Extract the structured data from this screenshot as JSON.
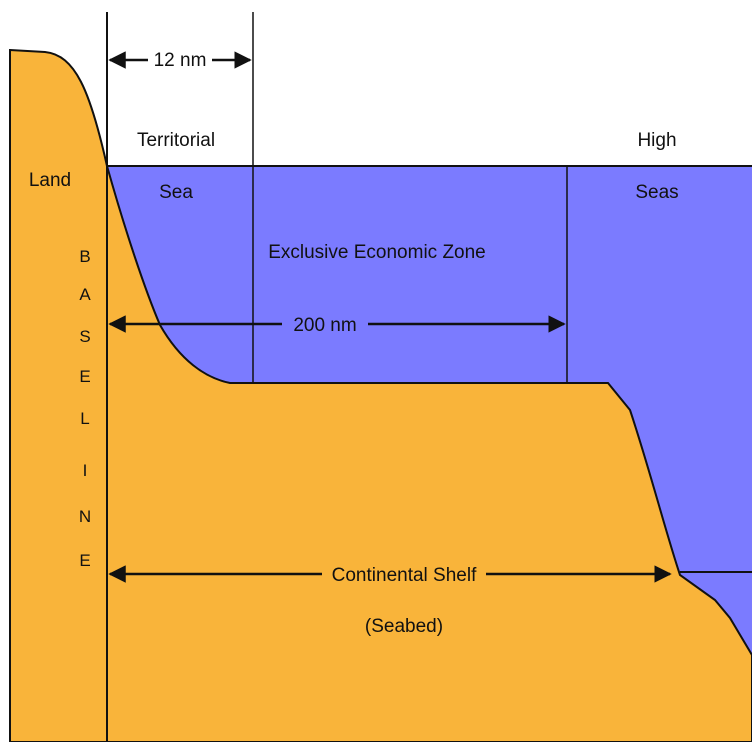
{
  "colors": {
    "land": "#F9B43A",
    "sea": "#7B7BFF",
    "line": "#111111",
    "background": "#FFFFFF"
  },
  "labels": {
    "land": "Land",
    "territorial_line1": "Territorial",
    "territorial_line2": "Sea",
    "high_seas_line1": "High",
    "high_seas_line2": "Seas",
    "eez": "Exclusive Economic Zone",
    "twelve_nm": "12 nm",
    "two_hundred_nm": "200 nm",
    "shelf_line1": "Continental Shelf",
    "shelf_line2": "(Seabed)",
    "baseline_letters": [
      "B",
      "A",
      "S",
      "E",
      "L",
      "I",
      "N",
      "E"
    ]
  }
}
